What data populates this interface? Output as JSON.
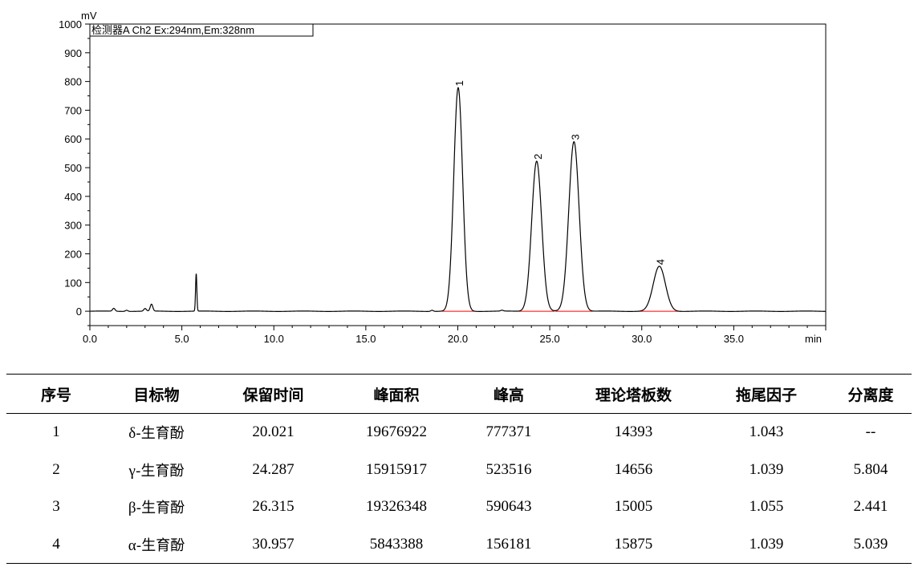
{
  "chart_data": {
    "type": "line",
    "detector_label": "检测器A Ch2 Ex:294nm,Em:328nm",
    "y_unit": "mV",
    "x_unit": "min",
    "xlim": [
      0,
      40
    ],
    "ylim": [
      -50,
      1000
    ],
    "x_ticks": [
      "0.0",
      "5.0",
      "10.0",
      "15.0",
      "20.0",
      "25.0",
      "30.0",
      "35.0"
    ],
    "y_ticks": [
      "0",
      "100",
      "200",
      "300",
      "400",
      "500",
      "600",
      "700",
      "800",
      "900",
      "1000"
    ],
    "grid": false,
    "baseline_color": "#ff0000",
    "trace_color": "#000000",
    "peaks": [
      {
        "label": "1",
        "retention_time": 20.021,
        "height_mV": 778
      },
      {
        "label": "2",
        "retention_time": 24.287,
        "height_mV": 523
      },
      {
        "label": "3",
        "retention_time": 26.315,
        "height_mV": 591
      },
      {
        "label": "4",
        "retention_time": 30.957,
        "height_mV": 156
      }
    ],
    "minor_peaks": [
      {
        "time": 1.3,
        "height_mV": 10
      },
      {
        "time": 2.0,
        "height_mV": 4
      },
      {
        "time": 3.0,
        "height_mV": 9
      },
      {
        "time": 3.35,
        "height_mV": 24
      },
      {
        "time": 5.78,
        "height_mV": 130
      },
      {
        "time": 18.6,
        "height_mV": 4
      },
      {
        "time": 22.4,
        "height_mV": 3
      }
    ]
  },
  "table": {
    "headers": [
      "序号",
      "目标物",
      "保留时间",
      "峰面积",
      "峰高",
      "理论塔板数",
      "拖尾因子",
      "分离度"
    ],
    "rows": [
      {
        "no": "1",
        "greek": "δ",
        "name": "-生育酚",
        "rt": "20.021",
        "area": "19676922",
        "height": "777371",
        "plates": "14393",
        "tailing": "1.043",
        "resolution": "--"
      },
      {
        "no": "2",
        "greek": "γ",
        "name": "-生育酚",
        "rt": "24.287",
        "area": "15915917",
        "height": "523516",
        "plates": "14656",
        "tailing": "1.039",
        "resolution": "5.804"
      },
      {
        "no": "3",
        "greek": "β",
        "name": "-生育酚",
        "rt": "26.315",
        "area": "19326348",
        "height": "590643",
        "plates": "15005",
        "tailing": "1.055",
        "resolution": "2.441"
      },
      {
        "no": "4",
        "greek": "α",
        "name": "-生育酚",
        "rt": "30.957",
        "area": "5843388",
        "height": "156181",
        "plates": "15875",
        "tailing": "1.039",
        "resolution": "5.039"
      }
    ]
  }
}
